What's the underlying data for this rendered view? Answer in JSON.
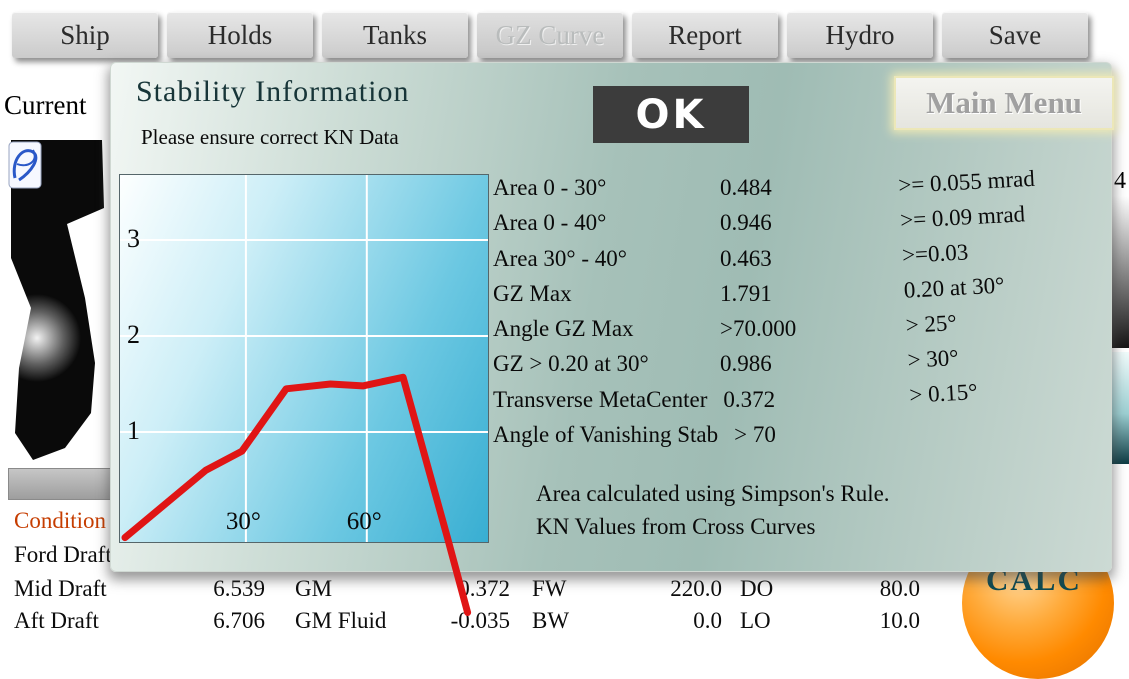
{
  "tabs": [
    {
      "label": "Ship",
      "enabled": true
    },
    {
      "label": "Holds",
      "enabled": true
    },
    {
      "label": "Tanks",
      "enabled": true
    },
    {
      "label": "GZ Curve",
      "enabled": false
    },
    {
      "label": "Report",
      "enabled": true
    },
    {
      "label": "Hydro",
      "enabled": true
    },
    {
      "label": "Save",
      "enabled": true
    }
  ],
  "background": {
    "current_label": "Current",
    "calc_button_label": "CALC",
    "side_scale_top_label": "4",
    "table_rows": [
      {
        "accent": true,
        "cells": [
          "Condition"
        ]
      },
      {
        "accent": false,
        "cells": [
          "Ford Draft"
        ]
      },
      {
        "accent": false,
        "cells": [
          "Mid Draft",
          "6.539",
          "GM",
          "0.372",
          "FW",
          "220.0",
          "DO",
          "80.0"
        ]
      },
      {
        "accent": false,
        "cells": [
          "Aft Draft",
          "6.706",
          "GM Fluid",
          "-0.035",
          "BW",
          "0.0",
          "LO",
          "10.0"
        ]
      }
    ]
  },
  "dialog": {
    "title": "Stability Information",
    "subtitle": "Please ensure correct KN Data",
    "ok_label": "OK",
    "main_menu_label": "Main Menu",
    "rows": [
      {
        "label": "Area 0 - 30°",
        "value": "0.484"
      },
      {
        "label": "Area 0 - 40°",
        "value": "0.946"
      },
      {
        "label": "Area 30° - 40°",
        "value": "0.463"
      },
      {
        "label": "GZ Max",
        "value": "1.791"
      },
      {
        "label": "Angle GZ Max",
        "value": ">70.000"
      },
      {
        "label": "GZ > 0.20 at 30°",
        "value": "0.986"
      },
      {
        "label": "Transverse MetaCenter",
        "value": "0.372"
      },
      {
        "label": "Angle of Vanishing Stab",
        "value": "> 70"
      }
    ],
    "criteria_col": [
      ">= 0.055 mrad",
      ">= 0.09 mrad",
      ">=0.03",
      "0.20 at 30°",
      "> 25°",
      "> 30°",
      "> 0.15°"
    ],
    "notes": [
      "Area calculated using Simpson's Rule.",
      "KN Values from Cross Curves"
    ]
  },
  "chart_data": {
    "type": "line",
    "title": "",
    "xlabel": "",
    "ylabel": "",
    "x_ticks": [
      {
        "deg": 30,
        "label": "30°"
      },
      {
        "deg": 60,
        "label": "60°"
      }
    ],
    "y_ticks": [
      {
        "val": 1,
        "label": "1"
      },
      {
        "val": 2,
        "label": "2"
      },
      {
        "val": 3,
        "label": "3"
      }
    ],
    "x_range_deg": [
      0,
      90
    ],
    "y_range": [
      -0.15,
      3.7
    ],
    "grid": true,
    "line_color": "#e01515",
    "series": [
      {
        "name": "GZ",
        "points": [
          [
            0,
            -0.1
          ],
          [
            20,
            0.6
          ],
          [
            29,
            0.8
          ],
          [
            40,
            1.45
          ],
          [
            51,
            1.5
          ],
          [
            59,
            1.48
          ],
          [
            69,
            1.57
          ],
          [
            80,
            -0.1
          ],
          [
            85,
            -0.88
          ]
        ]
      }
    ]
  },
  "colors": {
    "dialog_teal": "#a6c1b9",
    "accent_orange": "#c63d00",
    "calc_orange": "#ff8a00",
    "curve_red": "#e01515",
    "chart_cyan": "#38aed2"
  }
}
